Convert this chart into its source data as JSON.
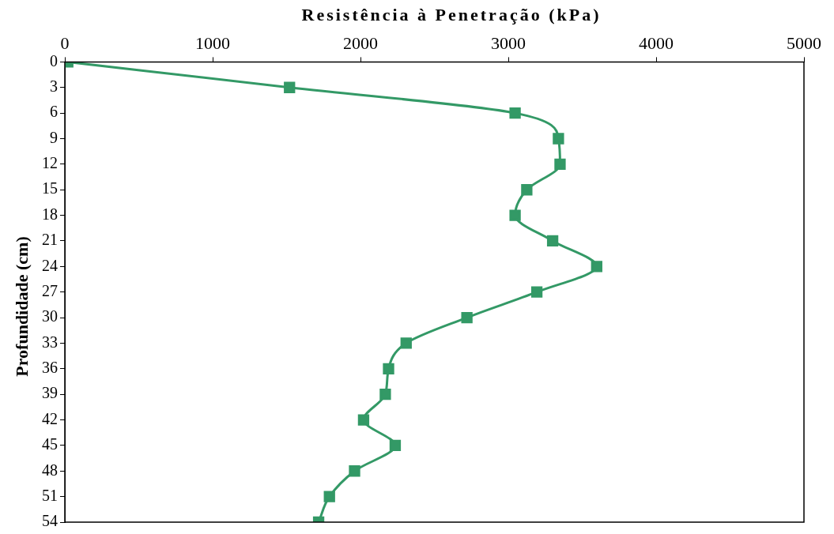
{
  "chart_data": {
    "type": "line",
    "xlabel": "Resistência à Penetração (kPa)",
    "ylabel": "Profundidade (cm)",
    "x": [
      20,
      1520,
      3046,
      3339,
      3350,
      3125,
      3046,
      3300,
      3598,
      3193,
      2720,
      2309,
      2190,
      2168,
      2021,
      2235,
      1960,
      1790,
      1717
    ],
    "values": [
      0,
      3,
      6,
      9,
      12,
      15,
      18,
      21,
      24,
      27,
      30,
      33,
      36,
      39,
      42,
      45,
      48,
      51,
      54
    ],
    "color": "#339966",
    "marker": "square",
    "line_style": "solid",
    "legend": false,
    "grid": false,
    "xlim": [
      0,
      5000
    ],
    "xticks": [
      0,
      1000,
      2000,
      3000,
      4000,
      5000
    ],
    "ylim": [
      54,
      0
    ],
    "yticks": [
      0,
      3,
      6,
      9,
      12,
      15,
      18,
      21,
      24,
      27,
      30,
      33,
      36,
      39,
      42,
      45,
      48,
      51,
      54
    ]
  }
}
